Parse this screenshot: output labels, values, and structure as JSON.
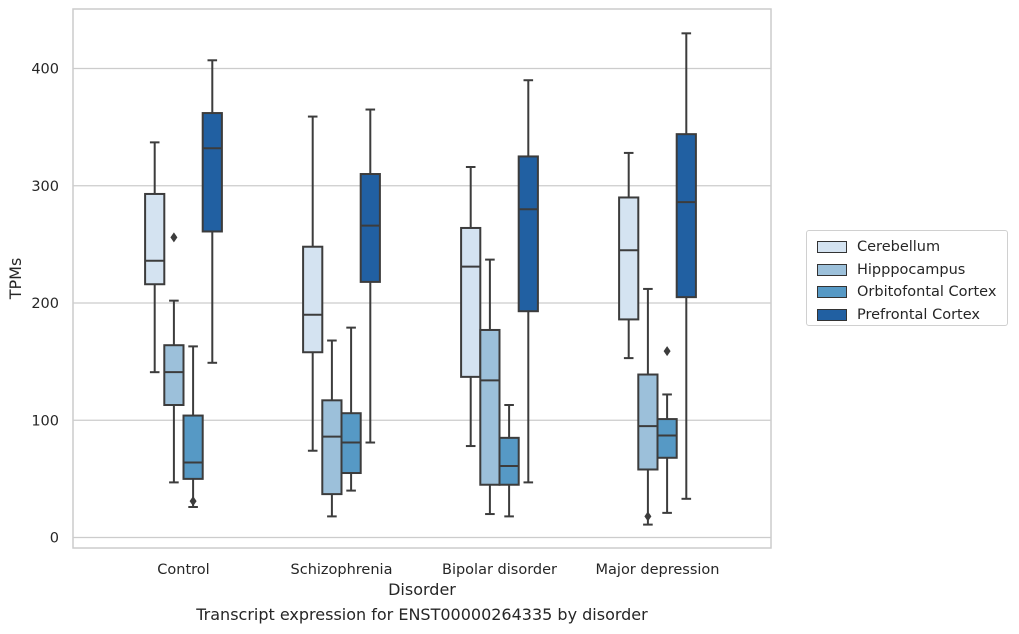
{
  "caption": "Transcript expression for ENST00000264335 by disorder",
  "chart_data": {
    "type": "box",
    "xlabel": "Disorder",
    "ylabel": "TPMs",
    "ylim": [
      -8,
      453
    ],
    "yticks": [
      0,
      100,
      200,
      300,
      400
    ],
    "grid": "horizontal",
    "legend_position": "right",
    "categories": [
      "Control",
      "Schizophrenia",
      "Bipolar disorder",
      "Major depression"
    ],
    "series": [
      {
        "name": "Cerebellum",
        "color": "#d4e3f1",
        "boxes": [
          {
            "whislo": 141,
            "q1": 216,
            "med": 236,
            "q3": 293,
            "whishi": 337,
            "fliers": []
          },
          {
            "whislo": 74,
            "q1": 158,
            "med": 190,
            "q3": 248,
            "whishi": 359,
            "fliers": []
          },
          {
            "whislo": 78,
            "q1": 137,
            "med": 231,
            "q3": 264,
            "whishi": 316,
            "fliers": []
          },
          {
            "whislo": 153,
            "q1": 186,
            "med": 245,
            "q3": 290,
            "whishi": 328,
            "fliers": []
          }
        ]
      },
      {
        "name": "Hipppocampus",
        "color": "#9cc0da",
        "boxes": [
          {
            "whislo": 47,
            "q1": 113,
            "med": 141,
            "q3": 164,
            "whishi": 202,
            "fliers": [
              256
            ]
          },
          {
            "whislo": 18,
            "q1": 37,
            "med": 86,
            "q3": 117,
            "whishi": 168,
            "fliers": []
          },
          {
            "whislo": 20,
            "q1": 45,
            "med": 134,
            "q3": 177,
            "whishi": 237,
            "fliers": []
          },
          {
            "whislo": 11,
            "q1": 58,
            "med": 95,
            "q3": 139,
            "whishi": 212,
            "fliers": [
              18
            ]
          }
        ]
      },
      {
        "name": "Orbitofontal Cortex",
        "color": "#5699c5",
        "boxes": [
          {
            "whislo": 26,
            "q1": 50,
            "med": 64,
            "q3": 104,
            "whishi": 163,
            "fliers": [
              31
            ]
          },
          {
            "whislo": 40,
            "q1": 55,
            "med": 81,
            "q3": 106,
            "whishi": 179,
            "fliers": []
          },
          {
            "whislo": 18,
            "q1": 45,
            "med": 61,
            "q3": 85,
            "whishi": 113,
            "fliers": []
          },
          {
            "whislo": 21,
            "q1": 68,
            "med": 87,
            "q3": 101,
            "whishi": 122,
            "fliers": [
              159
            ]
          }
        ]
      },
      {
        "name": "Prefrontal Cortex",
        "color": "#2160a2",
        "boxes": [
          {
            "whislo": 149,
            "q1": 261,
            "med": 332,
            "q3": 362,
            "whishi": 407,
            "fliers": []
          },
          {
            "whislo": 81,
            "q1": 218,
            "med": 266,
            "q3": 310,
            "whishi": 365,
            "fliers": []
          },
          {
            "whislo": 47,
            "q1": 193,
            "med": 280,
            "q3": 325,
            "whishi": 390,
            "fliers": []
          },
          {
            "whislo": 33,
            "q1": 205,
            "med": 286,
            "q3": 344,
            "whishi": 430,
            "fliers": []
          }
        ]
      }
    ]
  }
}
